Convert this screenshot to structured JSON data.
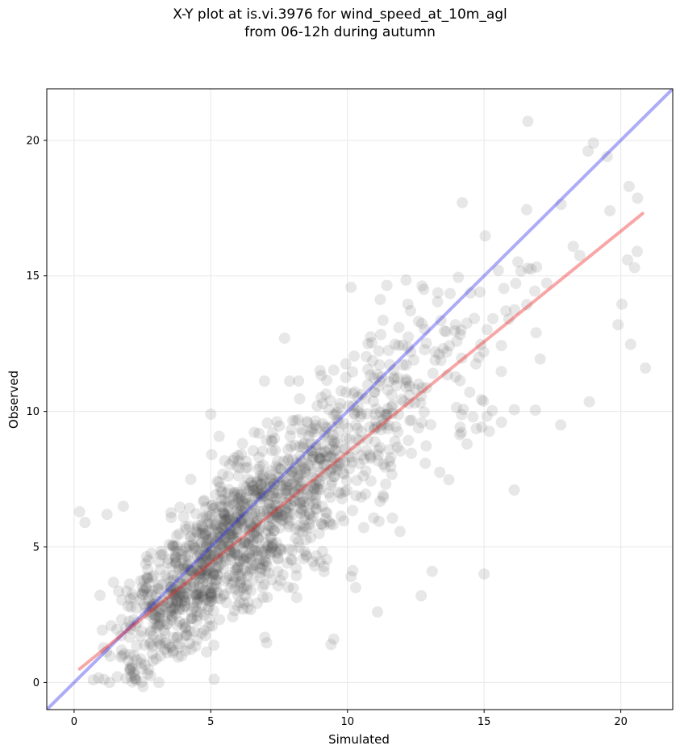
{
  "chart_data": {
    "type": "scatter",
    "title_line1": "X-Y plot at is.vi.3976 for wind_speed_at_10m_agl",
    "title_line2": "from 06-12h during autumn",
    "xlabel": "Simulated",
    "ylabel": "Observed",
    "xlim": [
      -1.0,
      21.9
    ],
    "ylim": [
      -1.0,
      21.9
    ],
    "xticks": [
      0,
      5,
      10,
      15,
      20
    ],
    "yticks": [
      0,
      5,
      10,
      15,
      20
    ],
    "grid": true,
    "point_color": "#444444",
    "one_to_one_line": {
      "x": [
        -1.0,
        21.9
      ],
      "y": [
        -1.0,
        21.9
      ],
      "color": "#3030ee"
    },
    "fit_line": {
      "x": [
        0.2,
        20.8
      ],
      "y": [
        0.5,
        17.3
      ],
      "color": "#ee2020"
    },
    "outlier_points": [
      {
        "x": 0.2,
        "y": 6.3
      },
      {
        "x": 0.4,
        "y": 5.9
      },
      {
        "x": 1.2,
        "y": 6.2
      },
      {
        "x": 1.8,
        "y": 6.5
      },
      {
        "x": 5.0,
        "y": 9.9
      },
      {
        "x": 7.7,
        "y": 12.7
      },
      {
        "x": 16.6,
        "y": 20.7
      },
      {
        "x": 18.8,
        "y": 19.6
      },
      {
        "x": 19.0,
        "y": 19.9
      },
      {
        "x": 19.5,
        "y": 19.4
      },
      {
        "x": 20.3,
        "y": 18.3
      },
      {
        "x": 14.2,
        "y": 17.7
      },
      {
        "x": 15.0,
        "y": 4.0
      },
      {
        "x": 13.1,
        "y": 4.1
      },
      {
        "x": 12.7,
        "y": 3.2
      },
      {
        "x": 16.1,
        "y": 7.1
      },
      {
        "x": 20.9,
        "y": 11.6
      },
      {
        "x": 19.9,
        "y": 13.2
      },
      {
        "x": 17.8,
        "y": 9.5
      },
      {
        "x": 9.4,
        "y": 1.4
      },
      {
        "x": 9.5,
        "y": 1.6
      },
      {
        "x": 10.3,
        "y": 3.5
      },
      {
        "x": 3.1,
        "y": 0.0
      },
      {
        "x": 0.7,
        "y": 0.1
      },
      {
        "x": 1.3,
        "y": 0.0
      },
      {
        "x": 11.1,
        "y": 2.6
      },
      {
        "x": 16.9,
        "y": 12.9
      },
      {
        "x": 20.6,
        "y": 15.9
      },
      {
        "x": 20.5,
        "y": 15.3
      },
      {
        "x": 19.6,
        "y": 17.4
      }
    ],
    "cloud_model": {
      "n_points": 1450,
      "x_distribution_mode": 6.0,
      "x_range": [
        0.2,
        20.9
      ],
      "relationship": "observed ≈ 0.82 × simulated + 0.35",
      "scatter_sd": 1.5
    }
  }
}
